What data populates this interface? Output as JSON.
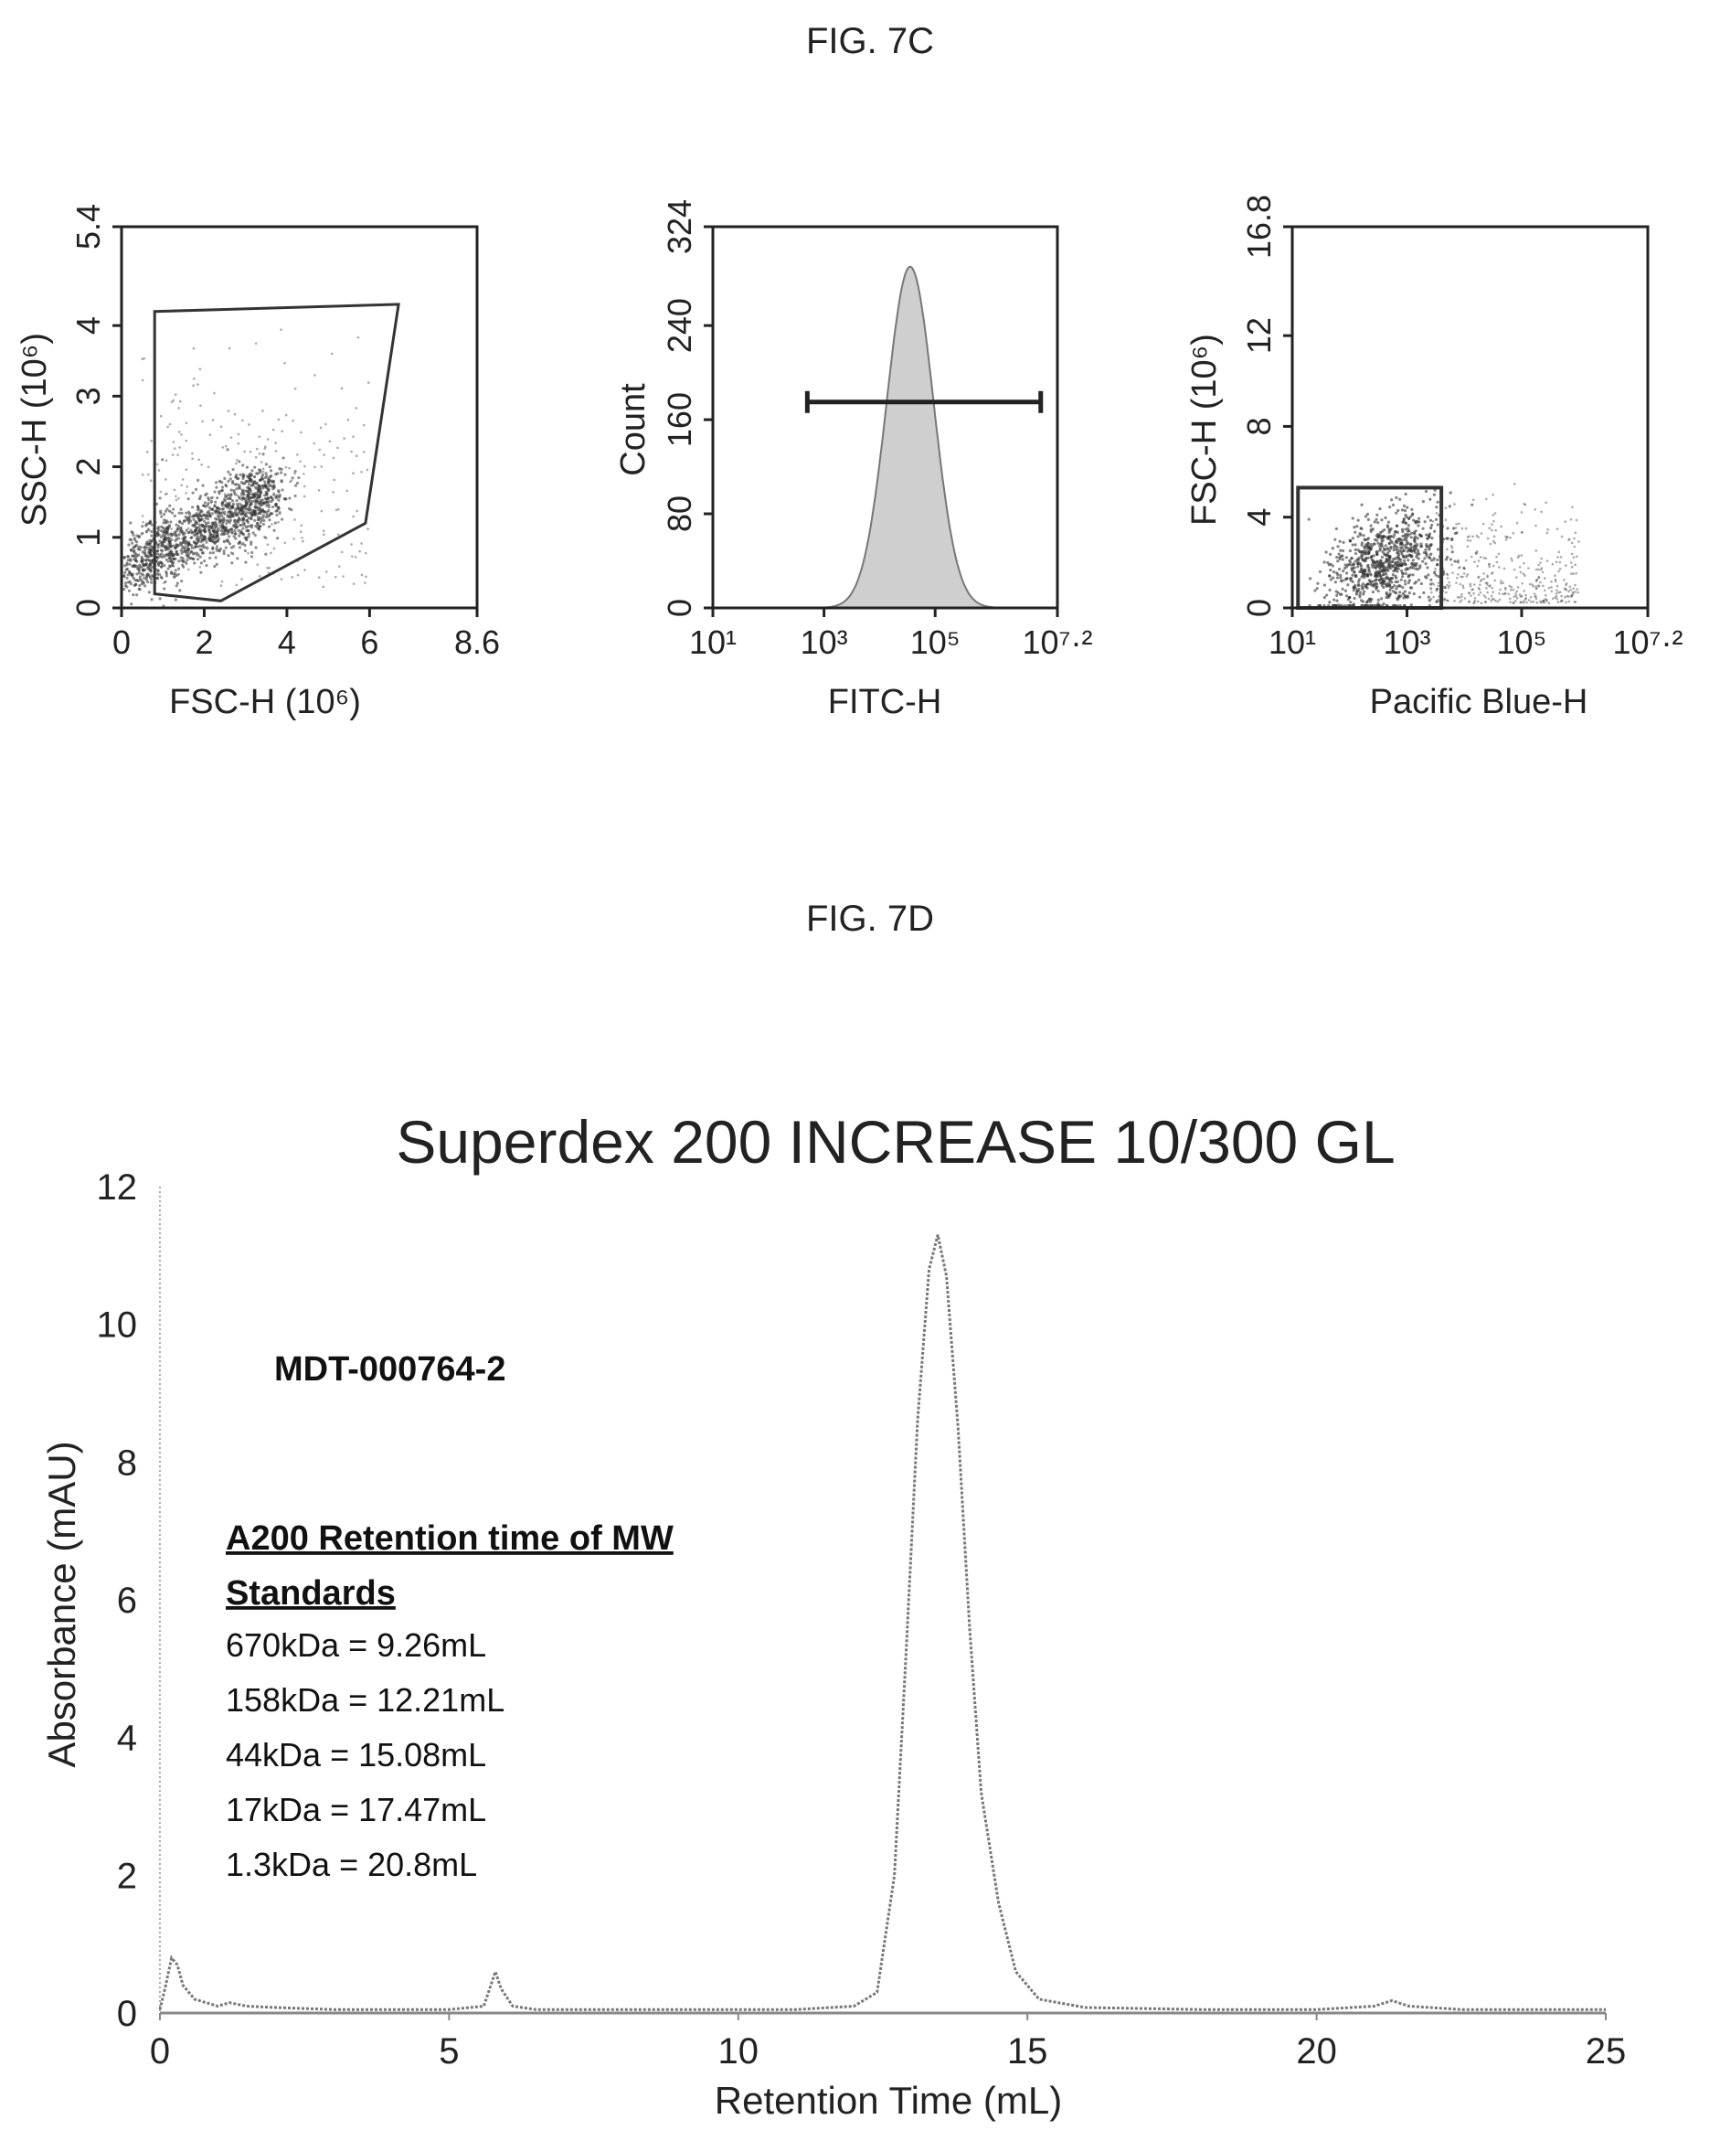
{
  "figure_labels": {
    "fig7c": "FIG. 7C",
    "fig7d": "FIG. 7D"
  },
  "chart_data": [
    {
      "type": "scatter",
      "panel": "flow-scatter-1",
      "xlabel": "FSC-H (10⁶)",
      "ylabel": "SSC-H (10⁶)",
      "xlim": [
        0,
        8.6
      ],
      "ylim": [
        0,
        5.4
      ],
      "xticks": [
        "0",
        "2",
        "4",
        "6",
        "8.6"
      ],
      "yticks": [
        "0",
        "1",
        "2",
        "3",
        "4",
        "5.4"
      ],
      "gate_polygon": [
        [
          0.8,
          0.2
        ],
        [
          0.8,
          4.2
        ],
        [
          6.7,
          4.3
        ],
        [
          5.9,
          1.2
        ],
        [
          2.4,
          0.1
        ]
      ],
      "density_ridge": [
        [
          0.3,
          0.5
        ],
        [
          1.0,
          0.85
        ],
        [
          2.0,
          1.1
        ],
        [
          3.0,
          1.4
        ],
        [
          3.5,
          1.75
        ]
      ]
    },
    {
      "type": "area",
      "panel": "flow-histogram",
      "xlabel": "FITC-H",
      "ylabel": "Count",
      "xscale": "log",
      "xlim_log10": [
        1,
        7.2
      ],
      "ylim": [
        0,
        324
      ],
      "xticks": [
        "10¹",
        "10³",
        "10⁵",
        "10⁷·²"
      ],
      "yticks": [
        "0",
        "80",
        "160",
        "240",
        "324"
      ],
      "histogram": {
        "peak_log10": 4.55,
        "peak_count": 290,
        "sigma_log10": 0.42
      },
      "gate_bar": {
        "from_log10": 2.7,
        "to_log10": 6.9,
        "count": 175
      }
    },
    {
      "type": "scatter",
      "panel": "flow-scatter-2",
      "xlabel": "Pacific Blue-H",
      "ylabel": "FSC-H (10⁶)",
      "xscale": "log",
      "xlim_log10": [
        1,
        7.2
      ],
      "ylim": [
        0,
        16.8
      ],
      "xticks": [
        "10¹",
        "10³",
        "10⁵",
        "10⁷·²"
      ],
      "yticks": [
        "0",
        "4",
        "8",
        "12",
        "16.8"
      ],
      "gate_rect": {
        "x_log10": [
          1.1,
          3.6
        ],
        "y": [
          0,
          5.3
        ]
      }
    },
    {
      "type": "line",
      "panel": "sec-chromatogram",
      "title": "Superdex 200 INCREASE 10/300 GL",
      "xlabel": "Retention Time (mL)",
      "ylabel": "Absorbance (mAU)",
      "xlim": [
        0,
        25
      ],
      "ylim": [
        0,
        12
      ],
      "xticks": [
        "0",
        "5",
        "10",
        "15",
        "20",
        "25"
      ],
      "yticks": [
        "0",
        "2",
        "4",
        "6",
        "8",
        "10",
        "12"
      ],
      "x": [
        0,
        0.1,
        0.2,
        0.3,
        0.4,
        0.6,
        0.8,
        1.0,
        1.2,
        1.5,
        2.0,
        3.0,
        4.0,
        5.0,
        5.6,
        5.8,
        5.9,
        6.1,
        6.5,
        8.0,
        10.0,
        11.0,
        12.0,
        12.4,
        12.7,
        12.9,
        13.1,
        13.3,
        13.45,
        13.6,
        13.8,
        14.0,
        14.2,
        14.5,
        14.8,
        15.2,
        16.0,
        18.0,
        20.0,
        21.0,
        21.3,
        21.6,
        22.5,
        24.0,
        25.0
      ],
      "y": [
        0.05,
        0.4,
        0.8,
        0.7,
        0.4,
        0.2,
        0.15,
        0.1,
        0.15,
        0.1,
        0.08,
        0.05,
        0.05,
        0.05,
        0.1,
        0.6,
        0.35,
        0.1,
        0.05,
        0.05,
        0.05,
        0.05,
        0.1,
        0.3,
        2.0,
        5.2,
        8.6,
        10.8,
        11.3,
        10.7,
        8.5,
        5.6,
        3.2,
        1.6,
        0.6,
        0.2,
        0.08,
        0.05,
        0.05,
        0.1,
        0.18,
        0.1,
        0.05,
        0.05,
        0.05
      ],
      "annotations": {
        "sample_id": "MDT-000764-2",
        "standards_heading_1": "A200 Retention time of MW",
        "standards_heading_2": "Standards",
        "standards": [
          "670kDa = 9.26mL",
          "158kDa = 12.21mL",
          "44kDa = 15.08mL",
          "17kDa = 17.47mL",
          "1.3kDa = 20.8mL"
        ]
      }
    }
  ]
}
